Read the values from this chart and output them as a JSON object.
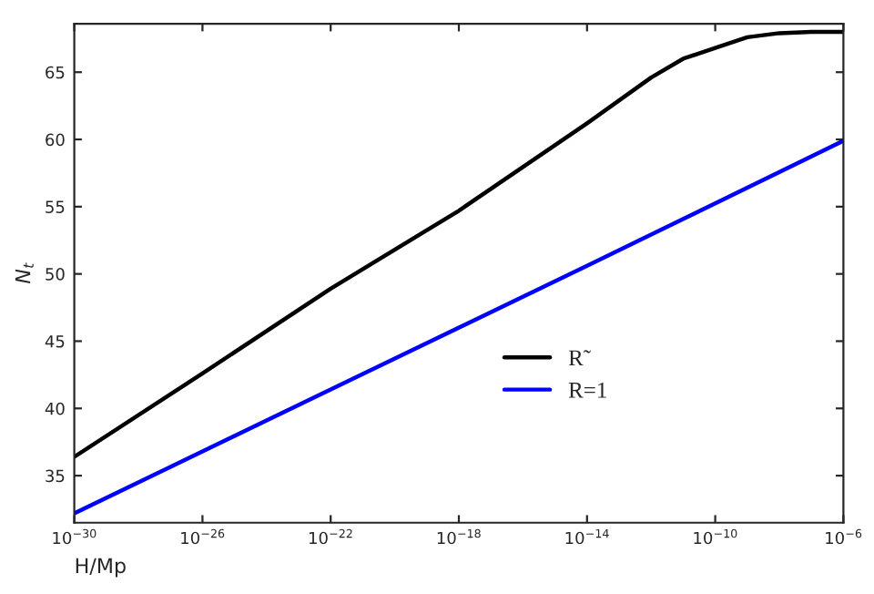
{
  "chart_data": {
    "type": "line",
    "xlabel": "H/Mp",
    "ylabel": "N$_{t}$",
    "log": "x",
    "xlim": [
      1e-30,
      1e-06
    ],
    "ylim": [
      31.5,
      68.6
    ],
    "xticks": [
      {
        "value": 1e-30,
        "label": "10$^{−30}$"
      },
      {
        "value": 1e-26,
        "label": "10$^{−26}$"
      },
      {
        "value": 1e-22,
        "label": "10$^{−22}$"
      },
      {
        "value": 1e-18,
        "label": "10$^{−18}$"
      },
      {
        "value": 1e-14,
        "label": "10$^{−14}$"
      },
      {
        "value": 1e-10,
        "label": "10$^{−10}$"
      },
      {
        "value": 1e-06,
        "label": "10$^{−6}$"
      }
    ],
    "yticks": [
      35,
      40,
      45,
      50,
      55,
      60,
      65
    ],
    "legend": "lower right",
    "grid": false,
    "line_style": "solid",
    "marker": "none",
    "series": [
      {
        "name": "R̃",
        "color": "#000000",
        "x": [
          1e-30,
          1e-26,
          1e-22,
          1e-18,
          1e-14,
          1e-12,
          1e-11,
          1e-10,
          1e-09,
          1e-08,
          1e-07,
          1e-06
        ],
        "values": [
          36.4,
          42.6,
          48.9,
          54.7,
          61.2,
          64.6,
          66.0,
          66.8,
          67.6,
          67.9,
          68.0,
          68.0
        ]
      },
      {
        "name": "R=1",
        "color": "#0000ff",
        "x": [
          1e-30,
          1e-22,
          1e-14,
          1e-06
        ],
        "values": [
          32.2,
          41.4,
          50.6,
          59.9
        ]
      }
    ]
  }
}
